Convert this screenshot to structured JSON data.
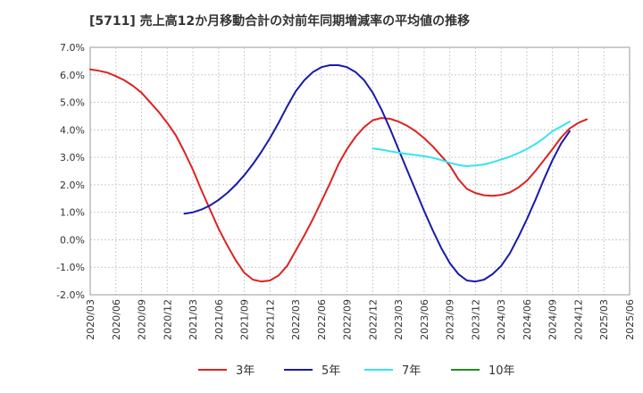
{
  "chart_data": {
    "type": "line",
    "title": "[5711]  売上高12か月移動合計の対前年同期増減率の平均値の推移",
    "xlabel": "",
    "ylabel": "",
    "ylim": [
      -2.0,
      7.0
    ],
    "yticks": [
      "-2.0%",
      "-1.0%",
      "0.0%",
      "1.0%",
      "2.0%",
      "3.0%",
      "4.0%",
      "5.0%",
      "6.0%",
      "7.0%"
    ],
    "grid": true,
    "legend_position": "bottom",
    "x": [
      "2020/03",
      "2020/06",
      "2020/09",
      "2020/12",
      "2021/03",
      "2021/06",
      "2021/09",
      "2021/12",
      "2022/03",
      "2022/06",
      "2022/09",
      "2022/12",
      "2023/03",
      "2023/06",
      "2023/09",
      "2023/12",
      "2024/03",
      "2024/06",
      "2024/09",
      "2024/12",
      "2025/03",
      "2025/06"
    ],
    "series": [
      {
        "name": "3年",
        "color": "#dd2222",
        "points": [
          [
            "2020/03",
            6.2
          ],
          [
            "2020/04",
            6.15
          ],
          [
            "2020/05",
            6.08
          ],
          [
            "2020/06",
            5.95
          ],
          [
            "2020/07",
            5.8
          ],
          [
            "2020/08",
            5.6
          ],
          [
            "2020/09",
            5.35
          ],
          [
            "2020/10",
            5.0
          ],
          [
            "2020/11",
            4.65
          ],
          [
            "2020/12",
            4.25
          ],
          [
            "2021/01",
            3.8
          ],
          [
            "2021/02",
            3.2
          ],
          [
            "2021/03",
            2.55
          ],
          [
            "2021/04",
            1.8
          ],
          [
            "2021/05",
            1.1
          ],
          [
            "2021/06",
            0.4
          ],
          [
            "2021/07",
            -0.2
          ],
          [
            "2021/08",
            -0.75
          ],
          [
            "2021/09",
            -1.2
          ],
          [
            "2021/10",
            -1.45
          ],
          [
            "2021/11",
            -1.52
          ],
          [
            "2021/12",
            -1.48
          ],
          [
            "2022/01",
            -1.3
          ],
          [
            "2022/02",
            -0.95
          ],
          [
            "2022/03",
            -0.4
          ],
          [
            "2022/04",
            0.15
          ],
          [
            "2022/05",
            0.75
          ],
          [
            "2022/06",
            1.4
          ],
          [
            "2022/07",
            2.05
          ],
          [
            "2022/08",
            2.75
          ],
          [
            "2022/09",
            3.3
          ],
          [
            "2022/10",
            3.75
          ],
          [
            "2022/11",
            4.1
          ],
          [
            "2022/12",
            4.35
          ],
          [
            "2023/01",
            4.43
          ],
          [
            "2023/02",
            4.4
          ],
          [
            "2023/03",
            4.3
          ],
          [
            "2023/04",
            4.15
          ],
          [
            "2023/05",
            3.95
          ],
          [
            "2023/06",
            3.7
          ],
          [
            "2023/07",
            3.4
          ],
          [
            "2023/08",
            3.05
          ],
          [
            "2023/09",
            2.7
          ],
          [
            "2023/10",
            2.2
          ],
          [
            "2023/11",
            1.85
          ],
          [
            "2023/12",
            1.7
          ],
          [
            "2024/01",
            1.62
          ],
          [
            "2024/02",
            1.6
          ],
          [
            "2024/03",
            1.63
          ],
          [
            "2024/04",
            1.72
          ],
          [
            "2024/05",
            1.9
          ],
          [
            "2024/06",
            2.15
          ],
          [
            "2024/07",
            2.5
          ],
          [
            "2024/08",
            2.9
          ],
          [
            "2024/09",
            3.3
          ],
          [
            "2024/10",
            3.72
          ],
          [
            "2024/11",
            4.05
          ],
          [
            "2024/12",
            4.25
          ],
          [
            "2025/01",
            4.38
          ]
        ]
      },
      {
        "name": "5年",
        "color": "#1a1aaa",
        "points": [
          [
            "2021/02",
            0.95
          ],
          [
            "2021/03",
            1.0
          ],
          [
            "2021/04",
            1.1
          ],
          [
            "2021/05",
            1.25
          ],
          [
            "2021/06",
            1.45
          ],
          [
            "2021/07",
            1.7
          ],
          [
            "2021/08",
            2.0
          ],
          [
            "2021/09",
            2.35
          ],
          [
            "2021/10",
            2.75
          ],
          [
            "2021/11",
            3.2
          ],
          [
            "2021/12",
            3.7
          ],
          [
            "2022/01",
            4.25
          ],
          [
            "2022/02",
            4.85
          ],
          [
            "2022/03",
            5.4
          ],
          [
            "2022/04",
            5.8
          ],
          [
            "2022/05",
            6.1
          ],
          [
            "2022/06",
            6.28
          ],
          [
            "2022/07",
            6.35
          ],
          [
            "2022/08",
            6.35
          ],
          [
            "2022/09",
            6.28
          ],
          [
            "2022/10",
            6.1
          ],
          [
            "2022/11",
            5.8
          ],
          [
            "2022/12",
            5.35
          ],
          [
            "2023/01",
            4.75
          ],
          [
            "2023/02",
            4.05
          ],
          [
            "2023/03",
            3.3
          ],
          [
            "2023/04",
            2.55
          ],
          [
            "2023/05",
            1.8
          ],
          [
            "2023/06",
            1.05
          ],
          [
            "2023/07",
            0.35
          ],
          [
            "2023/08",
            -0.3
          ],
          [
            "2023/09",
            -0.85
          ],
          [
            "2023/10",
            -1.25
          ],
          [
            "2023/11",
            -1.48
          ],
          [
            "2023/12",
            -1.52
          ],
          [
            "2024/01",
            -1.45
          ],
          [
            "2024/02",
            -1.25
          ],
          [
            "2024/03",
            -0.95
          ],
          [
            "2024/04",
            -0.5
          ],
          [
            "2024/05",
            0.1
          ],
          [
            "2024/06",
            0.75
          ],
          [
            "2024/07",
            1.45
          ],
          [
            "2024/08",
            2.2
          ],
          [
            "2024/09",
            2.9
          ],
          [
            "2024/10",
            3.5
          ],
          [
            "2024/11",
            3.95
          ]
        ]
      },
      {
        "name": "7年",
        "color": "#33e5ee",
        "points": [
          [
            "2022/12",
            3.32
          ],
          [
            "2023/01",
            3.28
          ],
          [
            "2023/02",
            3.22
          ],
          [
            "2023/03",
            3.17
          ],
          [
            "2023/04",
            3.12
          ],
          [
            "2023/05",
            3.08
          ],
          [
            "2023/06",
            3.04
          ],
          [
            "2023/07",
            2.98
          ],
          [
            "2023/08",
            2.9
          ],
          [
            "2023/09",
            2.8
          ],
          [
            "2023/10",
            2.72
          ],
          [
            "2023/11",
            2.68
          ],
          [
            "2023/12",
            2.7
          ],
          [
            "2024/01",
            2.74
          ],
          [
            "2024/02",
            2.82
          ],
          [
            "2024/03",
            2.92
          ],
          [
            "2024/04",
            3.02
          ],
          [
            "2024/05",
            3.15
          ],
          [
            "2024/06",
            3.3
          ],
          [
            "2024/07",
            3.48
          ],
          [
            "2024/08",
            3.7
          ],
          [
            "2024/09",
            3.95
          ],
          [
            "2024/10",
            4.12
          ],
          [
            "2024/11",
            4.3
          ]
        ]
      },
      {
        "name": "10年",
        "color": "#228b22",
        "points": []
      }
    ]
  }
}
